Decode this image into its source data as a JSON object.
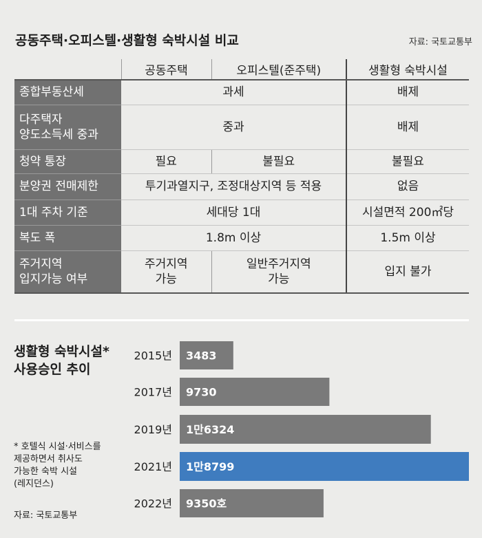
{
  "header": {
    "title": "공동주택·오피스텔·생활형 숙박시설 비교",
    "source": "자료: 국토교통부"
  },
  "table": {
    "columns": [
      "",
      "공동주택",
      "오피스텔(준주택)",
      "생활형 숙박시설"
    ],
    "rows": [
      {
        "label": "종합부동산세",
        "merged": "과세",
        "col3": "배제"
      },
      {
        "label": "다주택자\n양도소득세 중과",
        "merged": "중과",
        "col3": "배제"
      },
      {
        "label": "청약 통장",
        "col1": "필요",
        "col2": "불필요",
        "col3": "불필요"
      },
      {
        "label": "분양권 전매제한",
        "merged": "투기과열지구, 조정대상지역 등 적용",
        "col3": "없음"
      },
      {
        "label": "1대 주차 기준",
        "merged": "세대당 1대",
        "col3": "시설면적 200㎡당"
      },
      {
        "label": "복도 폭",
        "merged": "1.8m 이상",
        "col3": "1.5m 이상"
      },
      {
        "label": "주거지역\n입지가능 여부",
        "col1": "주거지역\n가능",
        "col2": "일반주거지역\n가능",
        "col3": "입지 불가"
      }
    ]
  },
  "chart": {
    "title": "생활형 숙박시설*\n사용승인 추이",
    "footnote": "* 호텔식 시설·서비스를\n제공하면서 취사도\n가능한 숙박 시설\n(레지던스)",
    "source": "자료: 국토교통부"
  },
  "chart_data": {
    "type": "bar",
    "orientation": "horizontal",
    "title": "생활형 숙박시설* 사용승인 추이",
    "categories": [
      "2015년",
      "2017년",
      "2019년",
      "2021년",
      "2022년"
    ],
    "values": [
      3483,
      9730,
      16324,
      18799,
      9350
    ],
    "data_labels": [
      "3483",
      "9730",
      "1만6324",
      "1만8799",
      "9350호"
    ],
    "highlight_index": 3,
    "colors": {
      "bar": "#7a7a7a",
      "highlight": "#3f7cbf",
      "label": "#ffffff"
    },
    "grid": false
  }
}
